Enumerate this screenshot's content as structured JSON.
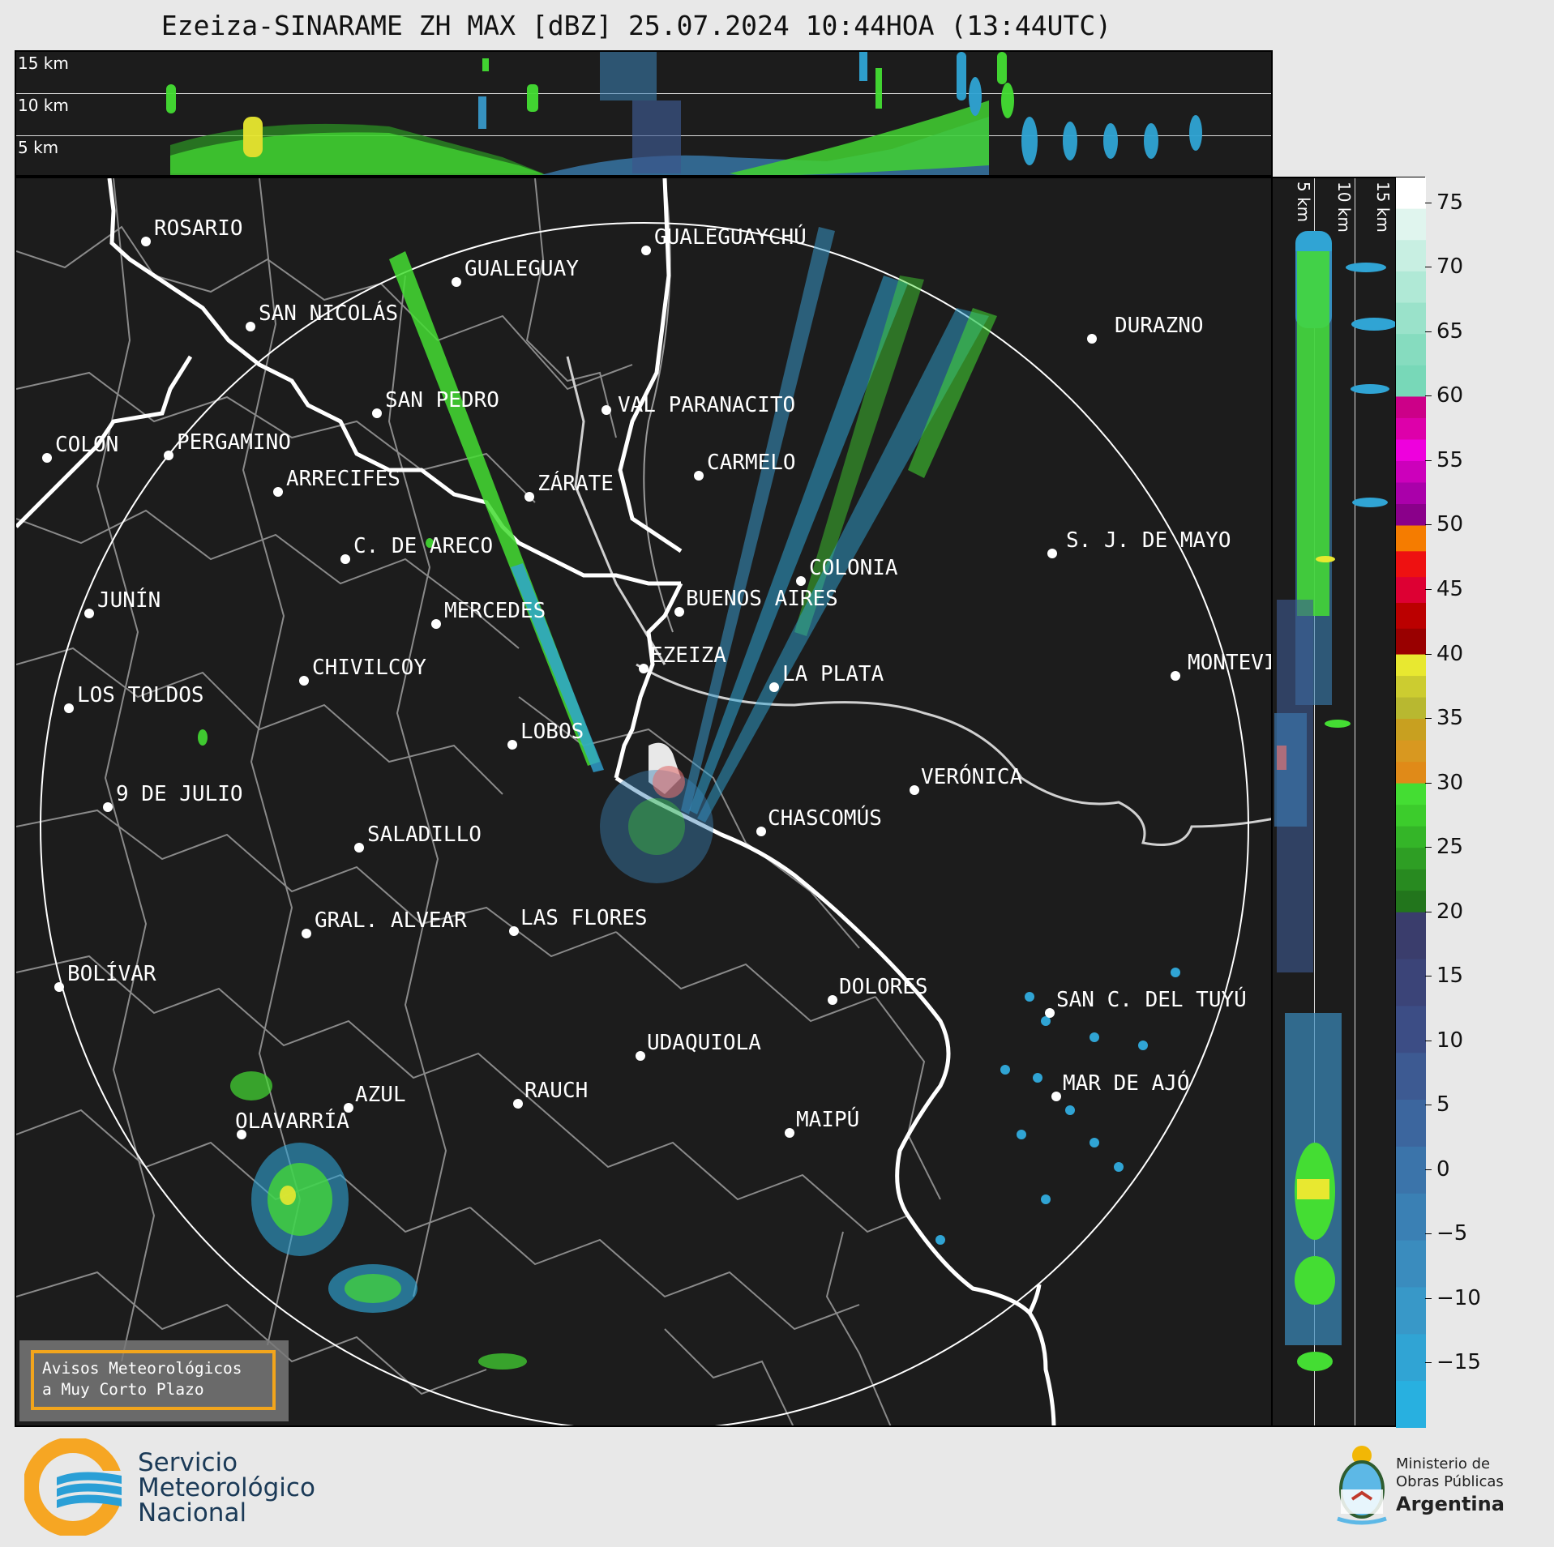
{
  "title": "Ezeiza-SINARAME ZH MAX [dBZ] 25.07.2024 10:44HOA (13:44UTC)",
  "altitude_labels": {
    "km15": "15 km",
    "km10": "10 km",
    "km5": "5 km"
  },
  "colorbar": {
    "ticks": [
      "75",
      "70",
      "65",
      "60",
      "55",
      "50",
      "45",
      "40",
      "35",
      "30",
      "25",
      "20",
      "15",
      "10",
      "5",
      "0",
      "−5",
      "−10",
      "−15"
    ],
    "bands": [
      {
        "from": 60,
        "to": 77,
        "colors": [
          "#ffffff",
          "#e0f5ee",
          "#c8efe2",
          "#b0e9d6",
          "#9ae2ca",
          "#86dcbf",
          "#78d8b8"
        ]
      },
      {
        "from": 50,
        "to": 60,
        "colors": [
          "#cc0088",
          "#dd00aa",
          "#ee00dd",
          "#cc00bb",
          "#aa00aa",
          "#8a008a"
        ]
      },
      {
        "from": 40,
        "to": 50,
        "colors": [
          "#f57c00",
          "#ee1111",
          "#dd0033",
          "#bb0000",
          "#990000"
        ]
      },
      {
        "from": 30,
        "to": 40,
        "colors": [
          "#e8e830",
          "#cccc30",
          "#b8b830",
          "#c8a020",
          "#d89820",
          "#e08a18"
        ]
      },
      {
        "from": 20,
        "to": 30,
        "colors": [
          "#44dd33",
          "#3ccc2c",
          "#34b528",
          "#2e9e24",
          "#288a20",
          "#22751c"
        ]
      },
      {
        "from": -20,
        "to": 20,
        "colors": [
          "#3a3d6c",
          "#3b4478",
          "#3c4d85",
          "#3d5a92",
          "#3c669e",
          "#3b74aa",
          "#3a80b4",
          "#3a8cbe",
          "#3898c8",
          "#30a4d4",
          "#28b0e0"
        ]
      }
    ]
  },
  "cities": [
    {
      "name": "ROSARIO"
    },
    {
      "name": "GUALEGUAYCHÚ"
    },
    {
      "name": "GUALEGUAY"
    },
    {
      "name": "SAN NICOLÁS"
    },
    {
      "name": "DURAZNO"
    },
    {
      "name": "SAN PEDRO"
    },
    {
      "name": "VAL PARANACITO"
    },
    {
      "name": "COLON"
    },
    {
      "name": "PERGAMINO"
    },
    {
      "name": "CARMELO"
    },
    {
      "name": "ARRECIFES"
    },
    {
      "name": "ZÁRATE"
    },
    {
      "name": "S. J. DE MAYO"
    },
    {
      "name": "C. DE ARECO"
    },
    {
      "name": "COLONIA"
    },
    {
      "name": "JUNÍN"
    },
    {
      "name": "BUENOS AIRES"
    },
    {
      "name": "MERCEDES"
    },
    {
      "name": "EZEIZA"
    },
    {
      "name": "MONTEVIDEO"
    },
    {
      "name": "CHIVILCOY"
    },
    {
      "name": "LA PLATA"
    },
    {
      "name": "LOS TOLDOS"
    },
    {
      "name": "LOBOS"
    },
    {
      "name": "VERÓNICA"
    },
    {
      "name": "9 DE JULIO"
    },
    {
      "name": "CHASCOMÚS"
    },
    {
      "name": "SALADILLO"
    },
    {
      "name": "GRAL. ALVEAR"
    },
    {
      "name": "LAS FLORES"
    },
    {
      "name": "BOLÍVAR"
    },
    {
      "name": "DOLORES"
    },
    {
      "name": "SAN C. DEL TUYÚ"
    },
    {
      "name": "UDAQUIOLA"
    },
    {
      "name": "MAR DE AJÓ"
    },
    {
      "name": "AZUL"
    },
    {
      "name": "RAUCH"
    },
    {
      "name": "OLAVARRÍA"
    },
    {
      "name": "MAIPÚ"
    }
  ],
  "warning_button": {
    "line1": "Avisos Meteorológicos",
    "line2": "a Muy Corto Plazo"
  },
  "footer": {
    "smn": {
      "line1": "Servicio",
      "line2": "Meteorológico",
      "line3": "Nacional"
    },
    "ministry": {
      "line1": "Ministerio de",
      "line2": "Obras Públicas",
      "line3": "Argentina"
    }
  },
  "colors": {
    "background": "#1c1c1c",
    "coast": "#ffffff",
    "borders": "#888888",
    "warning_border": "#f2a51c"
  }
}
